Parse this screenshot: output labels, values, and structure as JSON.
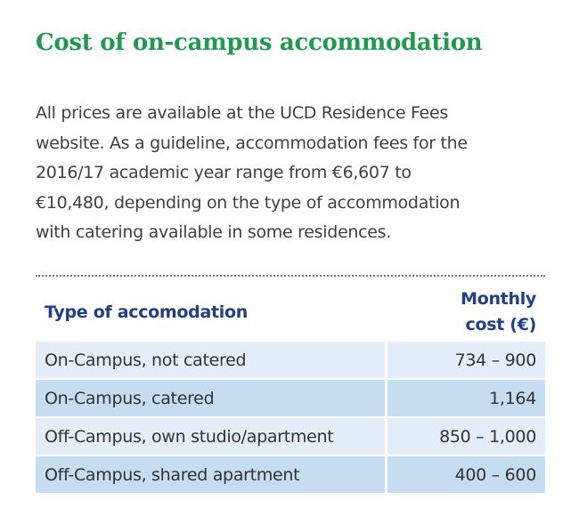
{
  "heading": "Cost of on-campus accommodation",
  "intro_lines": [
    "All prices are available at the UCD Residence Fees",
    "website. As a guideline, accommodation fees for the",
    "2016/17 academic year range from €6,607 to",
    "€10,480, depending on the type of accommodation",
    "with catering available in some residences."
  ],
  "table": {
    "header_type": "Type of accomodation",
    "header_cost_line1": "Monthly",
    "header_cost_line2": "cost (€)",
    "rows": [
      {
        "type": "On-Campus, not catered",
        "cost": "734 – 900"
      },
      {
        "type": "On-Campus, catered",
        "cost": "1,164"
      },
      {
        "type": "Off-Campus, own studio/apartment",
        "cost": "850 – 1,000"
      },
      {
        "type": "Off-Campus, shared apartment",
        "cost": "400 – 600"
      }
    ]
  }
}
